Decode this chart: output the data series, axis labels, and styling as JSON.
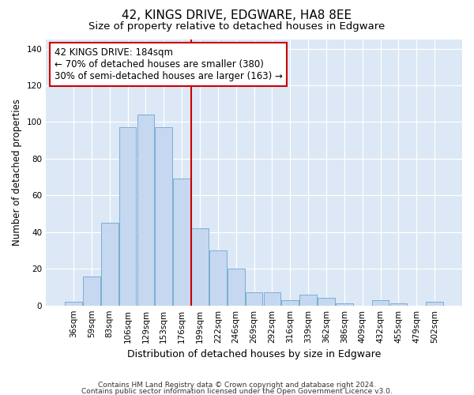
{
  "title": "42, KINGS DRIVE, EDGWARE, HA8 8EE",
  "subtitle": "Size of property relative to detached houses in Edgware",
  "xlabel": "Distribution of detached houses by size in Edgware",
  "ylabel": "Number of detached properties",
  "categories": [
    "36sqm",
    "59sqm",
    "83sqm",
    "106sqm",
    "129sqm",
    "153sqm",
    "176sqm",
    "199sqm",
    "222sqm",
    "246sqm",
    "269sqm",
    "292sqm",
    "316sqm",
    "339sqm",
    "362sqm",
    "386sqm",
    "409sqm",
    "432sqm",
    "455sqm",
    "479sqm",
    "502sqm"
  ],
  "values": [
    2,
    16,
    45,
    97,
    104,
    97,
    69,
    42,
    30,
    20,
    7,
    7,
    3,
    6,
    4,
    1,
    0,
    3,
    1,
    0,
    2
  ],
  "bar_color": "#c5d8f0",
  "bar_edge_color": "#7aaed4",
  "fig_background_color": "#ffffff",
  "plot_background_color": "#dce8f5",
  "grid_color": "#ffffff",
  "vline_x": 6.5,
  "vline_color": "#cc0000",
  "annotation_line1": "42 KINGS DRIVE: 184sqm",
  "annotation_line2": "← 70% of detached houses are smaller (380)",
  "annotation_line3": "30% of semi-detached houses are larger (163) →",
  "annotation_box_color": "#ffffff",
  "annotation_box_edge": "#cc0000",
  "ylim": [
    0,
    145
  ],
  "yticks": [
    0,
    20,
    40,
    60,
    80,
    100,
    120,
    140
  ],
  "footer_line1": "Contains HM Land Registry data © Crown copyright and database right 2024.",
  "footer_line2": "Contains public sector information licensed under the Open Government Licence v3.0.",
  "title_fontsize": 11,
  "subtitle_fontsize": 9.5,
  "xlabel_fontsize": 9,
  "ylabel_fontsize": 8.5,
  "tick_fontsize": 7.5,
  "annotation_fontsize": 8.5,
  "footer_fontsize": 6.5
}
